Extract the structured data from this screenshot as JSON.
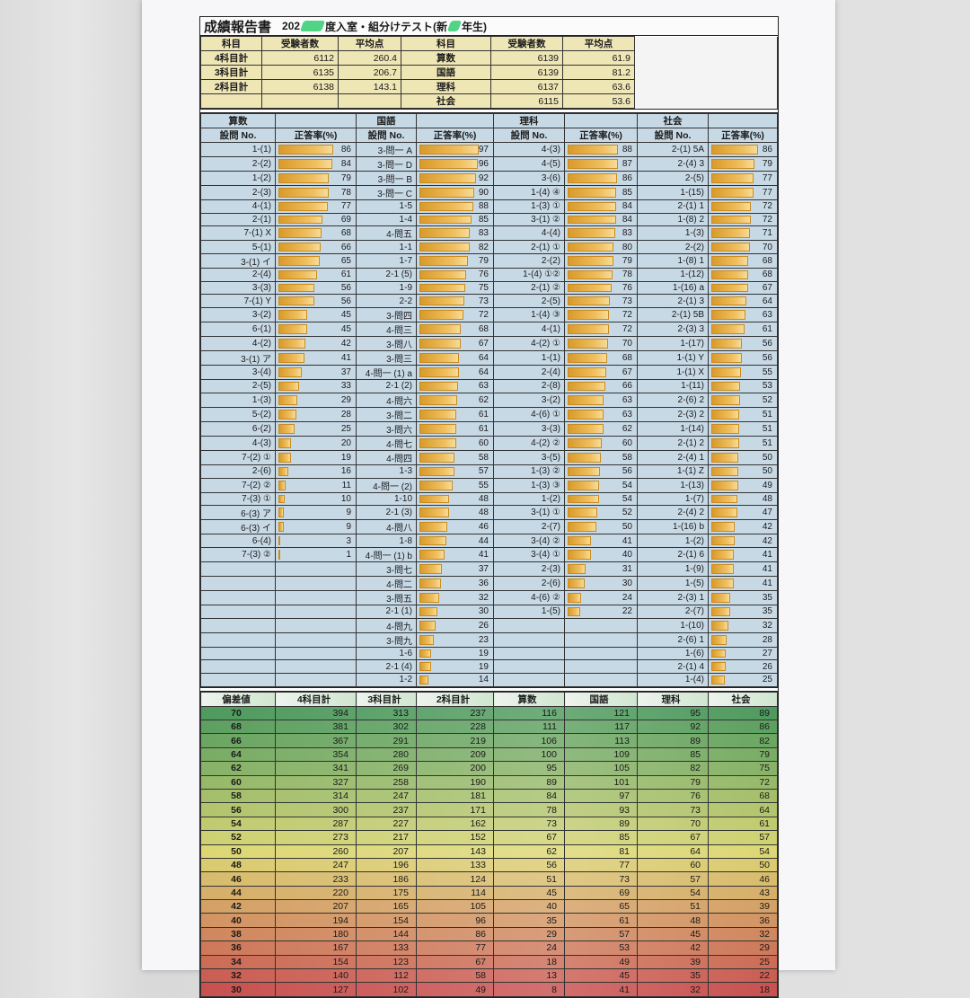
{
  "title": {
    "main": "成績報告書",
    "sub_parts": [
      "202",
      "度入室・組分けテスト(新",
      "年生)"
    ]
  },
  "summary": {
    "headers": [
      "科目",
      "受験者数",
      "平均点",
      "科目",
      "受験者数",
      "平均点"
    ],
    "left_rows": [
      [
        "4科目計",
        "6112",
        "260.4"
      ],
      [
        "3科目計",
        "6135",
        "206.7"
      ],
      [
        "2科目計",
        "6138",
        "143.1"
      ],
      [
        "",
        "",
        ""
      ]
    ],
    "right_rows": [
      [
        "算数",
        "6139",
        "61.9"
      ],
      [
        "国語",
        "6139",
        "81.2"
      ],
      [
        "理科",
        "6137",
        "63.6"
      ],
      [
        "社会",
        "6115",
        "53.6"
      ]
    ]
  },
  "questions": {
    "col_no": "設問 No.",
    "col_rate": "正答率(%)",
    "subjects": [
      {
        "name": "算数",
        "items": [
          [
            "1-(1)",
            86
          ],
          [
            "2-(2)",
            84
          ],
          [
            "1-(2)",
            79
          ],
          [
            "2-(3)",
            78
          ],
          [
            "4-(1)",
            77
          ],
          [
            "2-(1)",
            69
          ],
          [
            "7-(1) X",
            68
          ],
          [
            "5-(1)",
            66
          ],
          [
            "3-(1) イ",
            65
          ],
          [
            "2-(4)",
            61
          ],
          [
            "3-(3)",
            56
          ],
          [
            "7-(1) Y",
            56
          ],
          [
            "3-(2)",
            45
          ],
          [
            "6-(1)",
            45
          ],
          [
            "4-(2)",
            42
          ],
          [
            "3-(1) ア",
            41
          ],
          [
            "3-(4)",
            37
          ],
          [
            "2-(5)",
            33
          ],
          [
            "1-(3)",
            29
          ],
          [
            "5-(2)",
            28
          ],
          [
            "6-(2)",
            25
          ],
          [
            "4-(3)",
            20
          ],
          [
            "7-(2) ①",
            19
          ],
          [
            "2-(6)",
            16
          ],
          [
            "7-(2) ②",
            11
          ],
          [
            "7-(3) ①",
            10
          ],
          [
            "6-(3) ア",
            9
          ],
          [
            "6-(3) イ",
            9
          ],
          [
            "6-(4)",
            3
          ],
          [
            "7-(3) ②",
            1
          ]
        ]
      },
      {
        "name": "国語",
        "items": [
          [
            "3-問一 A",
            97
          ],
          [
            "3-問一 D",
            96
          ],
          [
            "3-問一 B",
            92
          ],
          [
            "3-問一 C",
            90
          ],
          [
            "1-5",
            88
          ],
          [
            "1-4",
            85
          ],
          [
            "4-問五",
            83
          ],
          [
            "1-1",
            82
          ],
          [
            "1-7",
            79
          ],
          [
            "2-1 (5)",
            76
          ],
          [
            "1-9",
            75
          ],
          [
            "2-2",
            73
          ],
          [
            "3-問四",
            72
          ],
          [
            "4-問三",
            68
          ],
          [
            "3-問八",
            67
          ],
          [
            "3-問三",
            64
          ],
          [
            "4-問一 (1) a",
            64
          ],
          [
            "2-1 (2)",
            63
          ],
          [
            "4-問六",
            62
          ],
          [
            "3-問二",
            61
          ],
          [
            "3-問六",
            61
          ],
          [
            "4-問七",
            60
          ],
          [
            "4-問四",
            58
          ],
          [
            "1-3",
            57
          ],
          [
            "4-問一 (2)",
            55
          ],
          [
            "1-10",
            48
          ],
          [
            "2-1 (3)",
            48
          ],
          [
            "4-問八",
            46
          ],
          [
            "1-8",
            44
          ],
          [
            "4-問一 (1) b",
            41
          ],
          [
            "3-問七",
            37
          ],
          [
            "4-問二",
            36
          ],
          [
            "3-問五",
            32
          ],
          [
            "2-1 (1)",
            30
          ],
          [
            "4-問九",
            26
          ],
          [
            "3-問九",
            23
          ],
          [
            "1-6",
            19
          ],
          [
            "2-1 (4)",
            19
          ],
          [
            "1-2",
            14
          ]
        ]
      },
      {
        "name": "理科",
        "items": [
          [
            "4-(3)",
            88
          ],
          [
            "4-(5)",
            87
          ],
          [
            "3-(6)",
            86
          ],
          [
            "1-(4) ④",
            85
          ],
          [
            "1-(3) ①",
            84
          ],
          [
            "3-(1) ②",
            84
          ],
          [
            "4-(4)",
            83
          ],
          [
            "2-(1) ①",
            80
          ],
          [
            "2-(2)",
            79
          ],
          [
            "1-(4) ①②",
            78
          ],
          [
            "2-(1) ②",
            76
          ],
          [
            "2-(5)",
            73
          ],
          [
            "1-(4) ③",
            72
          ],
          [
            "4-(1)",
            72
          ],
          [
            "4-(2) ①",
            70
          ],
          [
            "1-(1)",
            68
          ],
          [
            "2-(4)",
            67
          ],
          [
            "2-(8)",
            66
          ],
          [
            "3-(2)",
            63
          ],
          [
            "4-(6) ①",
            63
          ],
          [
            "3-(3)",
            62
          ],
          [
            "4-(2) ②",
            60
          ],
          [
            "3-(5)",
            58
          ],
          [
            "1-(3) ②",
            56
          ],
          [
            "1-(3) ③",
            54
          ],
          [
            "1-(2)",
            54
          ],
          [
            "3-(1) ①",
            52
          ],
          [
            "2-(7)",
            50
          ],
          [
            "3-(4) ②",
            41
          ],
          [
            "3-(4) ①",
            40
          ],
          [
            "2-(3)",
            31
          ],
          [
            "2-(6)",
            30
          ],
          [
            "4-(6) ②",
            24
          ],
          [
            "1-(5)",
            22
          ]
        ]
      },
      {
        "name": "社会",
        "items": [
          [
            "2-(1) 5A",
            86
          ],
          [
            "2-(4) 3",
            79
          ],
          [
            "2-(5)",
            77
          ],
          [
            "1-(15)",
            77
          ],
          [
            "2-(1) 1",
            72
          ],
          [
            "1-(8) 2",
            72
          ],
          [
            "1-(3)",
            71
          ],
          [
            "2-(2)",
            70
          ],
          [
            "1-(8) 1",
            68
          ],
          [
            "1-(12)",
            68
          ],
          [
            "1-(16) a",
            67
          ],
          [
            "2-(1) 3",
            64
          ],
          [
            "2-(1) 5B",
            63
          ],
          [
            "2-(3) 3",
            61
          ],
          [
            "1-(17)",
            56
          ],
          [
            "1-(1) Y",
            56
          ],
          [
            "1-(1) X",
            55
          ],
          [
            "1-(11)",
            53
          ],
          [
            "2-(6) 2",
            52
          ],
          [
            "2-(3) 2",
            51
          ],
          [
            "1-(14)",
            51
          ],
          [
            "2-(1) 2",
            51
          ],
          [
            "2-(4) 1",
            50
          ],
          [
            "1-(1) Z",
            50
          ],
          [
            "1-(13)",
            49
          ],
          [
            "1-(7)",
            48
          ],
          [
            "2-(4) 2",
            47
          ],
          [
            "1-(16) b",
            42
          ],
          [
            "1-(2)",
            42
          ],
          [
            "2-(1) 6",
            41
          ],
          [
            "1-(9)",
            41
          ],
          [
            "1-(5)",
            41
          ],
          [
            "2-(3) 1",
            35
          ],
          [
            "2-(7)",
            35
          ],
          [
            "1-(10)",
            32
          ],
          [
            "2-(6) 1",
            28
          ],
          [
            "1-(6)",
            27
          ],
          [
            "2-(1) 4",
            26
          ],
          [
            "1-(4)",
            25
          ]
        ]
      }
    ]
  },
  "deviation": {
    "headers": [
      "偏差値",
      "4科目計",
      "3科目計",
      "2科目計",
      "算数",
      "国語",
      "理科",
      "社会"
    ],
    "rows": [
      [
        70,
        394,
        313,
        237,
        116,
        121,
        95,
        89
      ],
      [
        68,
        381,
        302,
        228,
        111,
        117,
        92,
        86
      ],
      [
        66,
        367,
        291,
        219,
        106,
        113,
        89,
        82
      ],
      [
        64,
        354,
        280,
        209,
        100,
        109,
        85,
        79
      ],
      [
        62,
        341,
        269,
        200,
        95,
        105,
        82,
        75
      ],
      [
        60,
        327,
        258,
        190,
        89,
        101,
        79,
        72
      ],
      [
        58,
        314,
        247,
        181,
        84,
        97,
        76,
        68
      ],
      [
        56,
        300,
        237,
        171,
        78,
        93,
        73,
        64
      ],
      [
        54,
        287,
        227,
        162,
        73,
        89,
        70,
        61
      ],
      [
        52,
        273,
        217,
        152,
        67,
        85,
        67,
        57
      ],
      [
        50,
        260,
        207,
        143,
        62,
        81,
        64,
        54
      ],
      [
        48,
        247,
        196,
        133,
        56,
        77,
        60,
        50
      ],
      [
        46,
        233,
        186,
        124,
        51,
        73,
        57,
        46
      ],
      [
        44,
        220,
        175,
        114,
        45,
        69,
        54,
        43
      ],
      [
        42,
        207,
        165,
        105,
        40,
        65,
        51,
        39
      ],
      [
        40,
        194,
        154,
        96,
        35,
        61,
        48,
        36
      ],
      [
        38,
        180,
        144,
        86,
        29,
        57,
        45,
        32
      ],
      [
        36,
        167,
        133,
        77,
        24,
        53,
        42,
        29
      ],
      [
        34,
        154,
        123,
        67,
        18,
        49,
        39,
        25
      ],
      [
        32,
        140,
        112,
        58,
        13,
        45,
        35,
        22
      ],
      [
        30,
        127,
        102,
        49,
        8,
        41,
        32,
        18
      ]
    ]
  },
  "colors": {
    "summary_bg": "#efe6b6",
    "question_bg": "#c8d9e6",
    "bar": "#e4a83c",
    "dev_high": "#4f9a5e",
    "dev_mid": "#dcd774",
    "dev_low": "#c8514f",
    "redaction": "#3fcf7a"
  }
}
